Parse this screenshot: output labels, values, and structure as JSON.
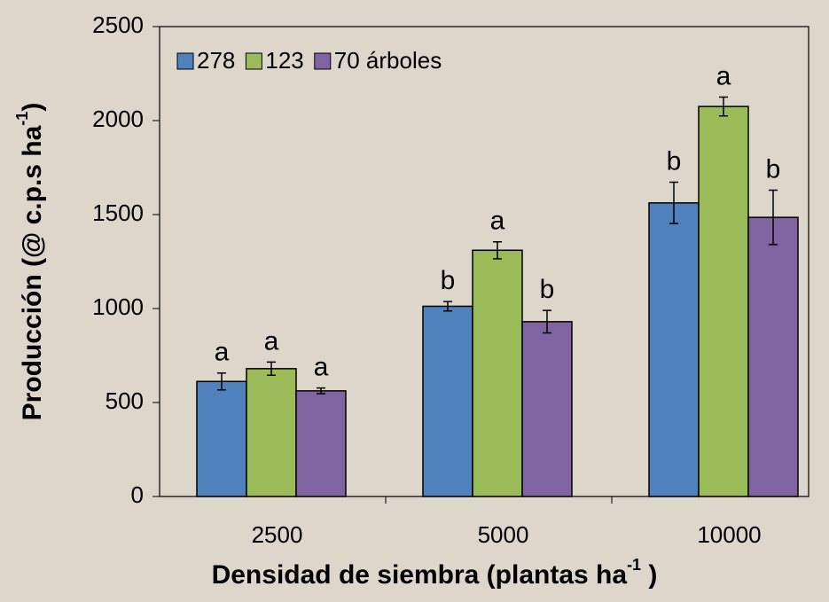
{
  "chart_data": {
    "type": "bar",
    "x_label": {
      "text": "Densidad de siembra (plantas ha",
      "sup": "-1",
      "end": " )"
    },
    "y_label": {
      "text": "Producción (@ c.p.s ha",
      "sup": "-1",
      "end": ")"
    },
    "categories": [
      "2500",
      "5000",
      "10000"
    ],
    "series": [
      {
        "name": "278",
        "color": "#4f81bd",
        "values": [
          612,
          1012,
          1562
        ],
        "errors": [
          45,
          25,
          110
        ],
        "letters": [
          "a",
          "b",
          "b"
        ]
      },
      {
        "name": "123",
        "color": "#9bbb59",
        "values": [
          680,
          1310,
          2075
        ],
        "errors": [
          35,
          45,
          50
        ],
        "letters": [
          "a",
          "a",
          "a"
        ]
      },
      {
        "name": "70 árboles",
        "color": "#8064a2",
        "values": [
          562,
          930,
          1485
        ],
        "errors": [
          15,
          60,
          145
        ],
        "letters": [
          "a",
          "b",
          "b"
        ]
      }
    ],
    "ylim": [
      0,
      2500
    ],
    "yticks": [
      0,
      500,
      1000,
      1500,
      2000,
      2500
    ],
    "legend": "top-left"
  }
}
